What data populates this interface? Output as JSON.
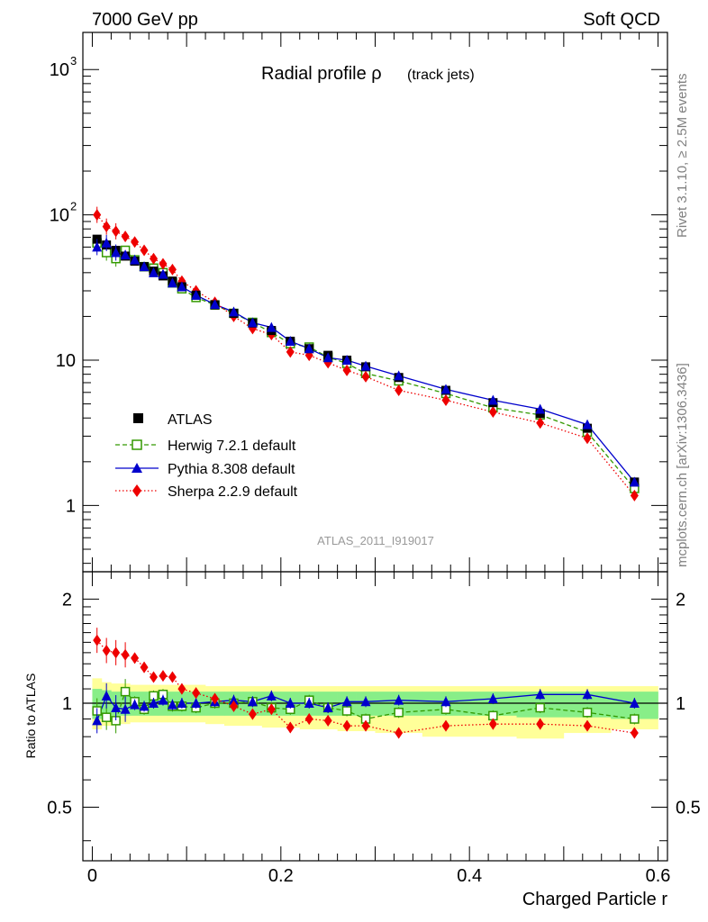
{
  "header": {
    "energy_label": "7000 GeV pp",
    "process_label": "Soft QCD"
  },
  "side_labels": {
    "rivet": "Rivet 3.1.10, ≥ 2.5M events",
    "mcplots": "mcplots.cern.ch [arXiv:1306.3436]"
  },
  "chart_data": [
    {
      "type": "scatter",
      "panel": "main",
      "title": "Radial profile ρ",
      "title_suffix": "(track jets)",
      "analysis_id": "ATLAS_2011_I919017",
      "xlim": [
        -0.01,
        0.61
      ],
      "ylim": [
        0.35,
        1800
      ],
      "yscale": "log",
      "y_ticks": [
        {
          "value": 1,
          "label": "1"
        },
        {
          "value": 10,
          "label": "10"
        },
        {
          "value": 100,
          "label": "10",
          "exp": "2"
        },
        {
          "value": 1000,
          "label": "10",
          "exp": "3"
        }
      ],
      "legend_position": "lower-left",
      "x": [
        0.005,
        0.015,
        0.025,
        0.035,
        0.045,
        0.055,
        0.065,
        0.075,
        0.085,
        0.095,
        0.11,
        0.13,
        0.15,
        0.17,
        0.19,
        0.21,
        0.23,
        0.25,
        0.27,
        0.29,
        0.325,
        0.375,
        0.425,
        0.475,
        0.525,
        0.575
      ],
      "series": [
        {
          "name": "ATLAS",
          "color": "#000000",
          "marker": "square-filled",
          "line": "none",
          "values": [
            68,
            62,
            57,
            52,
            48,
            44,
            41,
            38,
            35,
            32,
            28,
            24,
            21,
            18,
            16,
            13.5,
            12,
            10.8,
            10,
            9,
            7.6,
            6.2,
            5.1,
            4.3,
            3.4,
            1.45
          ]
        },
        {
          "name": "Herwig 7.2.1 default",
          "color": "#339900",
          "marker": "square-open",
          "line": "dashed",
          "values": [
            64,
            55,
            50,
            57,
            49,
            44,
            43,
            40,
            34,
            31,
            27,
            24,
            21,
            18.2,
            15.5,
            13.0,
            12.3,
            10.5,
            9.5,
            8.1,
            7.2,
            5.9,
            4.7,
            4.2,
            3.2,
            1.31
          ]
        },
        {
          "name": "Pythia 8.308 default",
          "color": "#0000cc",
          "marker": "triangle-filled",
          "line": "solid",
          "values": [
            60,
            64,
            55,
            53,
            49,
            44,
            40,
            39,
            34,
            32,
            28,
            24.2,
            21.5,
            18.1,
            16.8,
            13.5,
            12.0,
            10.4,
            10.0,
            9.1,
            7.8,
            6.3,
            5.3,
            4.6,
            3.6,
            1.45
          ]
        },
        {
          "name": "Sherpa 2.2.9 default",
          "color": "#ee0000",
          "marker": "diamond-filled",
          "line": "dotted",
          "values": [
            100,
            83,
            77,
            71,
            65,
            57,
            50,
            46,
            42,
            35,
            30,
            25,
            20,
            16.5,
            15,
            11.4,
            10.8,
            9.6,
            8.5,
            7.7,
            6.2,
            5.3,
            4.4,
            3.7,
            2.9,
            1.17
          ]
        }
      ]
    },
    {
      "type": "scatter",
      "panel": "ratio",
      "ylabel": "Ratio to ATLAS",
      "xlabel": "Charged Particle r",
      "xlim": [
        -0.01,
        0.61
      ],
      "ylim": [
        0.35,
        2.4
      ],
      "yscale": "log",
      "y_ticks": [
        {
          "value": 0.5,
          "label": "0.5"
        },
        {
          "value": 1,
          "label": "1"
        },
        {
          "value": 2,
          "label": "2"
        }
      ],
      "x_ticks": [
        {
          "value": 0,
          "label": "0"
        },
        {
          "value": 0.2,
          "label": "0.2"
        },
        {
          "value": 0.4,
          "label": "0.4"
        },
        {
          "value": 0.6,
          "label": "0.6"
        }
      ],
      "reference_line": 1,
      "band_edges": [
        0,
        0.01,
        0.02,
        0.03,
        0.04,
        0.05,
        0.06,
        0.07,
        0.08,
        0.09,
        0.1,
        0.12,
        0.14,
        0.16,
        0.18,
        0.2,
        0.22,
        0.24,
        0.26,
        0.28,
        0.3,
        0.35,
        0.4,
        0.45,
        0.5,
        0.55,
        0.6
      ],
      "band_stat": [
        [
          0.9,
          1.1
        ],
        [
          0.91,
          1.09
        ],
        [
          0.92,
          1.08
        ],
        [
          0.92,
          1.08
        ],
        [
          0.92,
          1.08
        ],
        [
          0.92,
          1.08
        ],
        [
          0.92,
          1.08
        ],
        [
          0.92,
          1.08
        ],
        [
          0.92,
          1.08
        ],
        [
          0.92,
          1.08
        ],
        [
          0.92,
          1.08
        ],
        [
          0.92,
          1.08
        ],
        [
          0.92,
          1.08
        ],
        [
          0.92,
          1.08
        ],
        [
          0.92,
          1.08
        ],
        [
          0.92,
          1.08
        ],
        [
          0.92,
          1.08
        ],
        [
          0.92,
          1.08
        ],
        [
          0.92,
          1.08
        ],
        [
          0.92,
          1.08
        ],
        [
          0.92,
          1.08
        ],
        [
          0.92,
          1.08
        ],
        [
          0.92,
          1.08
        ],
        [
          0.91,
          1.08
        ],
        [
          0.91,
          1.08
        ],
        [
          0.9,
          1.08
        ]
      ],
      "band_total": [
        [
          0.84,
          1.18
        ],
        [
          0.86,
          1.15
        ],
        [
          0.87,
          1.14
        ],
        [
          0.87,
          1.14
        ],
        [
          0.88,
          1.13
        ],
        [
          0.88,
          1.13
        ],
        [
          0.88,
          1.13
        ],
        [
          0.88,
          1.13
        ],
        [
          0.88,
          1.13
        ],
        [
          0.88,
          1.13
        ],
        [
          0.88,
          1.13
        ],
        [
          0.87,
          1.12
        ],
        [
          0.86,
          1.12
        ],
        [
          0.86,
          1.12
        ],
        [
          0.85,
          1.12
        ],
        [
          0.85,
          1.12
        ],
        [
          0.84,
          1.12
        ],
        [
          0.84,
          1.12
        ],
        [
          0.83,
          1.12
        ],
        [
          0.83,
          1.12
        ],
        [
          0.82,
          1.12
        ],
        [
          0.8,
          1.12
        ],
        [
          0.8,
          1.12
        ],
        [
          0.79,
          1.12
        ],
        [
          0.82,
          1.12
        ],
        [
          0.84,
          1.12
        ]
      ],
      "series": [
        {
          "name": "Herwig 7.2.1 default",
          "color": "#339900",
          "marker": "square-open",
          "line": "dashed",
          "values": [
            0.95,
            0.91,
            0.89,
            1.08,
            1.01,
            0.96,
            1.05,
            1.06,
            0.98,
            0.98,
            0.97,
            1.0,
            1.0,
            1.01,
            0.97,
            0.96,
            1.02,
            0.97,
            0.95,
            0.9,
            0.94,
            0.96,
            0.92,
            0.97,
            0.94,
            0.9
          ]
        },
        {
          "name": "Pythia 8.308 default",
          "color": "#0000cc",
          "marker": "triangle-filled",
          "line": "solid",
          "values": [
            0.89,
            1.05,
            0.97,
            0.96,
            0.99,
            0.98,
            1.0,
            1.02,
            0.99,
            1.0,
            1.0,
            1.01,
            1.02,
            1.01,
            1.05,
            1.0,
            1.0,
            0.97,
            1.01,
            1.01,
            1.02,
            1.01,
            1.03,
            1.06,
            1.06,
            1.0
          ]
        },
        {
          "name": "Sherpa 2.2.9 default",
          "color": "#ee0000",
          "marker": "diamond-filled",
          "line": "dotted",
          "values": [
            1.52,
            1.42,
            1.4,
            1.38,
            1.35,
            1.27,
            1.19,
            1.2,
            1.19,
            1.1,
            1.07,
            1.03,
            0.98,
            0.93,
            0.96,
            0.85,
            0.9,
            0.89,
            0.86,
            0.86,
            0.82,
            0.86,
            0.87,
            0.87,
            0.86,
            0.82
          ]
        }
      ]
    }
  ]
}
